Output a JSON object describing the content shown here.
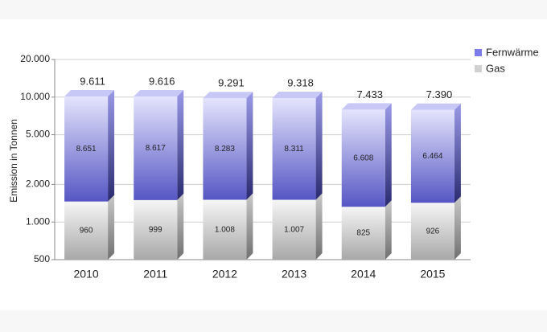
{
  "chart_data": {
    "type": "bar",
    "stacked": true,
    "log_scale": true,
    "grid": true,
    "legend": "top-right",
    "ylabel": "Emission in Tonnen",
    "categories": [
      "2010",
      "2011",
      "2012",
      "2013",
      "2014",
      "2015"
    ],
    "series": [
      {
        "name": "Gas",
        "color": "#d0d0d0",
        "values": [
          960,
          999,
          1008,
          1007,
          825,
          926
        ],
        "value_labels": [
          "960",
          "999",
          "1.008",
          "1.007",
          "825",
          "926"
        ]
      },
      {
        "name": "Fernwärme",
        "color": "#7b7bea",
        "values": [
          8651,
          8617,
          8283,
          8311,
          6608,
          6464
        ],
        "value_labels": [
          "8.651",
          "8.617",
          "8.283",
          "8.311",
          "6.608",
          "6.464"
        ]
      }
    ],
    "totals": {
      "values": [
        9611,
        9616,
        9291,
        9318,
        7433,
        7390
      ],
      "value_labels": [
        "9.611",
        "9.616",
        "9.291",
        "9.318",
        "7.433",
        "7.390"
      ]
    },
    "ylim": [
      500,
      20000
    ],
    "yticks": [
      500,
      {
        "value": 1000,
        "label": "1.000"
      },
      {
        "value": 2000,
        "label": "2.000"
      },
      {
        "value": 5000,
        "label": "5.000"
      },
      {
        "value": 10000,
        "label": "10.000"
      },
      {
        "value": 20000,
        "label": "20.000"
      }
    ]
  }
}
